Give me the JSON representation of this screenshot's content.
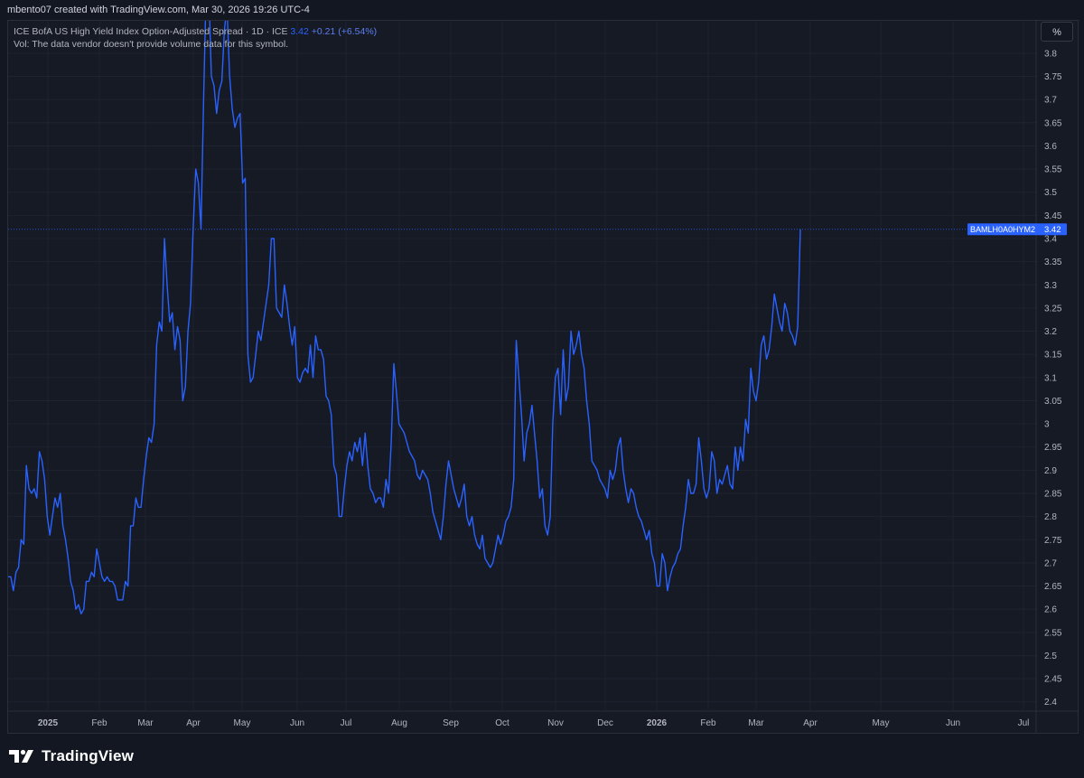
{
  "header": {
    "caption": "mbento07 created with TradingView.com, Mar 30, 2026 19:26 UTC-4"
  },
  "legend": {
    "series_title": "ICE BofA US High Yield Index Option-Adjusted Spread · 1D · ICE",
    "last_value": "3.42",
    "change": "+0.21 (+6.54%)",
    "volume_note": "Vol: The data vendor doesn't provide volume data for this symbol."
  },
  "price_scale": {
    "unit_label": "%"
  },
  "price_label": {
    "symbol": "BAMLH0A0HYM2",
    "value": "3.42"
  },
  "brand": {
    "name": "TradingView"
  },
  "colors": {
    "background": "#131722",
    "plot_background": "#161a25",
    "grid": "#1f2330",
    "line": "#2962ff",
    "label_bg": "#2962ff"
  },
  "chart_data": {
    "type": "line",
    "symbol": "BAMLH0A0HYM2",
    "ylabel": "%",
    "ylim": [
      2.38,
      3.87
    ],
    "y_ticks": [
      "2.4",
      "2.45",
      "2.5",
      "2.55",
      "2.6",
      "2.65",
      "2.7",
      "2.75",
      "2.8",
      "2.85",
      "2.9",
      "2.95",
      "3",
      "3.05",
      "3.1",
      "3.15",
      "3.2",
      "3.25",
      "3.3",
      "3.35",
      "3.4",
      "3.45",
      "3.5",
      "3.55",
      "3.6",
      "3.65",
      "3.7",
      "3.75",
      "3.8"
    ],
    "x_ticks": [
      "2025",
      "Feb",
      "Mar",
      "Apr",
      "May",
      "Jun",
      "Jul",
      "Aug",
      "Sep",
      "Oct",
      "Nov",
      "Dec",
      "2026",
      "Feb",
      "Mar",
      "Apr",
      "May",
      "Jun",
      "Jul"
    ],
    "grid": true,
    "last_value": 3.42,
    "series": [
      {
        "values": [
          2.67,
          2.67,
          2.64,
          2.68,
          2.69,
          2.75,
          2.74,
          2.91,
          2.86,
          2.85,
          2.86,
          2.84,
          2.94,
          2.92,
          2.88,
          2.8,
          2.76,
          2.8,
          2.84,
          2.82,
          2.85,
          2.78,
          2.75,
          2.71,
          2.66,
          2.64,
          2.6,
          2.61,
          2.59,
          2.6,
          2.66,
          2.66,
          2.68,
          2.67,
          2.73,
          2.7,
          2.67,
          2.66,
          2.67,
          2.66,
          2.66,
          2.65,
          2.62,
          2.62,
          2.62,
          2.66,
          2.65,
          2.78,
          2.78,
          2.84,
          2.82,
          2.82,
          2.88,
          2.93,
          2.97,
          2.96,
          3.0,
          3.17,
          3.22,
          3.2,
          3.4,
          3.3,
          3.22,
          3.24,
          3.16,
          3.21,
          3.18,
          3.05,
          3.08,
          3.2,
          3.26,
          3.42,
          3.55,
          3.52,
          3.42,
          3.7,
          3.95,
          3.94,
          3.75,
          3.73,
          3.67,
          3.72,
          3.74,
          3.85,
          3.9,
          3.75,
          3.68,
          3.64,
          3.66,
          3.67,
          3.52,
          3.53,
          3.15,
          3.09,
          3.1,
          3.15,
          3.2,
          3.18,
          3.22,
          3.26,
          3.3,
          3.4,
          3.4,
          3.25,
          3.24,
          3.23,
          3.3,
          3.26,
          3.21,
          3.17,
          3.21,
          3.1,
          3.09,
          3.11,
          3.12,
          3.11,
          3.17,
          3.1,
          3.19,
          3.16,
          3.16,
          3.14,
          3.06,
          3.05,
          3.02,
          2.91,
          2.89,
          2.8,
          2.8,
          2.86,
          2.91,
          2.94,
          2.92,
          2.96,
          2.94,
          2.97,
          2.91,
          2.98,
          2.91,
          2.86,
          2.85,
          2.83,
          2.84,
          2.84,
          2.82,
          2.88,
          2.85,
          2.96,
          3.13,
          3.07,
          3.0,
          2.99,
          2.98,
          2.96,
          2.94,
          2.93,
          2.92,
          2.89,
          2.88,
          2.9,
          2.89,
          2.88,
          2.85,
          2.81,
          2.79,
          2.77,
          2.75,
          2.8,
          2.87,
          2.92,
          2.89,
          2.86,
          2.84,
          2.82,
          2.84,
          2.87,
          2.8,
          2.78,
          2.8,
          2.76,
          2.74,
          2.73,
          2.76,
          2.71,
          2.7,
          2.69,
          2.7,
          2.73,
          2.76,
          2.74,
          2.76,
          2.79,
          2.8,
          2.82,
          2.88,
          3.18,
          3.1,
          3.02,
          2.92,
          2.98,
          3.0,
          3.04,
          2.98,
          2.92,
          2.84,
          2.86,
          2.78,
          2.76,
          2.8,
          3.0,
          3.1,
          3.12,
          3.02,
          3.16,
          3.05,
          3.08,
          3.2,
          3.15,
          3.17,
          3.2,
          3.15,
          3.12,
          3.05,
          3.0,
          2.92,
          2.91,
          2.9,
          2.88,
          2.87,
          2.86,
          2.84,
          2.9,
          2.88,
          2.9,
          2.95,
          2.97,
          2.9,
          2.86,
          2.83,
          2.86,
          2.85,
          2.82,
          2.8,
          2.79,
          2.77,
          2.75,
          2.77,
          2.72,
          2.7,
          2.65,
          2.65,
          2.72,
          2.7,
          2.64,
          2.67,
          2.69,
          2.7,
          2.72,
          2.73,
          2.78,
          2.82,
          2.88,
          2.85,
          2.85,
          2.87,
          2.97,
          2.92,
          2.86,
          2.84,
          2.86,
          2.94,
          2.92,
          2.85,
          2.88,
          2.87,
          2.89,
          2.91,
          2.87,
          2.86,
          2.95,
          2.9,
          2.95,
          2.92,
          3.01,
          2.98,
          3.12,
          3.07,
          3.05,
          3.09,
          3.17,
          3.19,
          3.14,
          3.16,
          3.21,
          3.28,
          3.25,
          3.22,
          3.2,
          3.26,
          3.24,
          3.2,
          3.19,
          3.17,
          3.21,
          3.42
        ]
      }
    ]
  }
}
